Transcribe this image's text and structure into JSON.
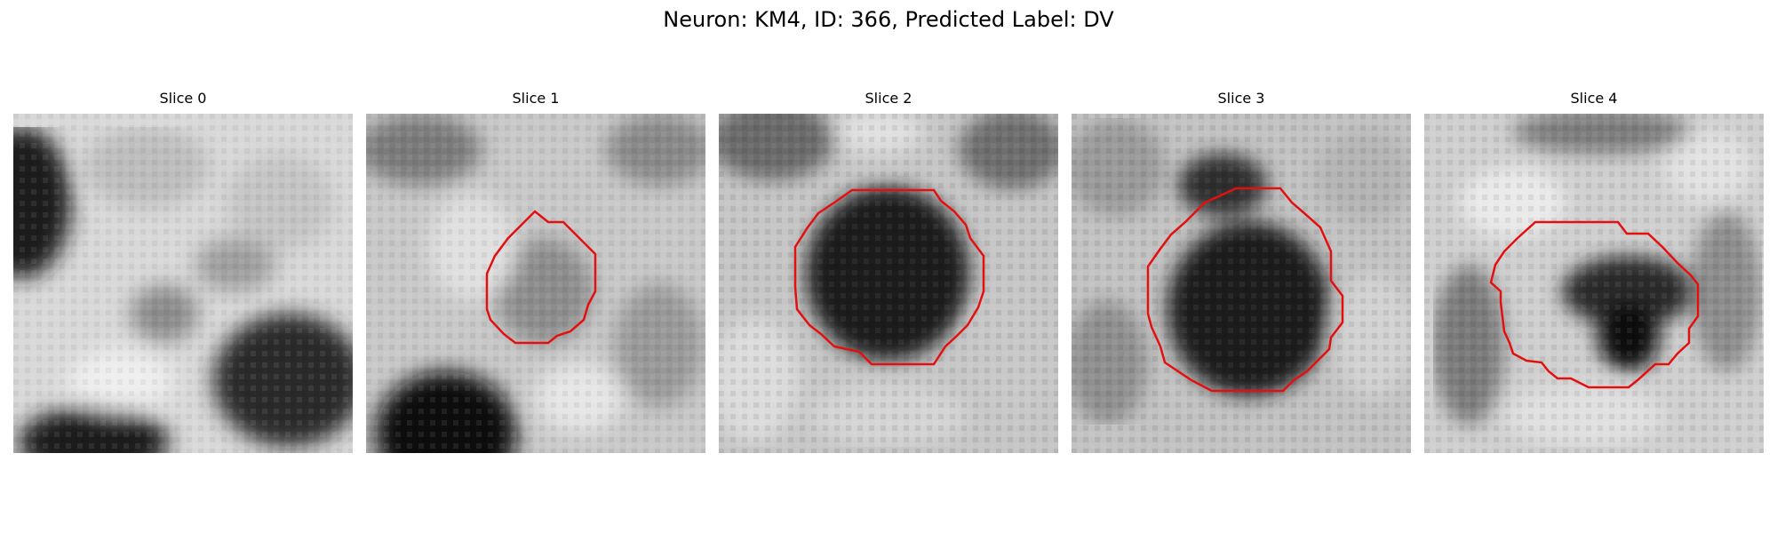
{
  "figure": {
    "title": "Neuron: KM4, ID: 366, Predicted Label: DV"
  },
  "panels": [
    {
      "title": "Slice 0",
      "has_contour": false
    },
    {
      "title": "Slice 1",
      "has_contour": true
    },
    {
      "title": "Slice 2",
      "has_contour": true
    },
    {
      "title": "Slice 3",
      "has_contour": true
    },
    {
      "title": "Slice 4",
      "has_contour": true
    }
  ],
  "colors": {
    "contour": "#e41010",
    "background": "#ffffff"
  }
}
